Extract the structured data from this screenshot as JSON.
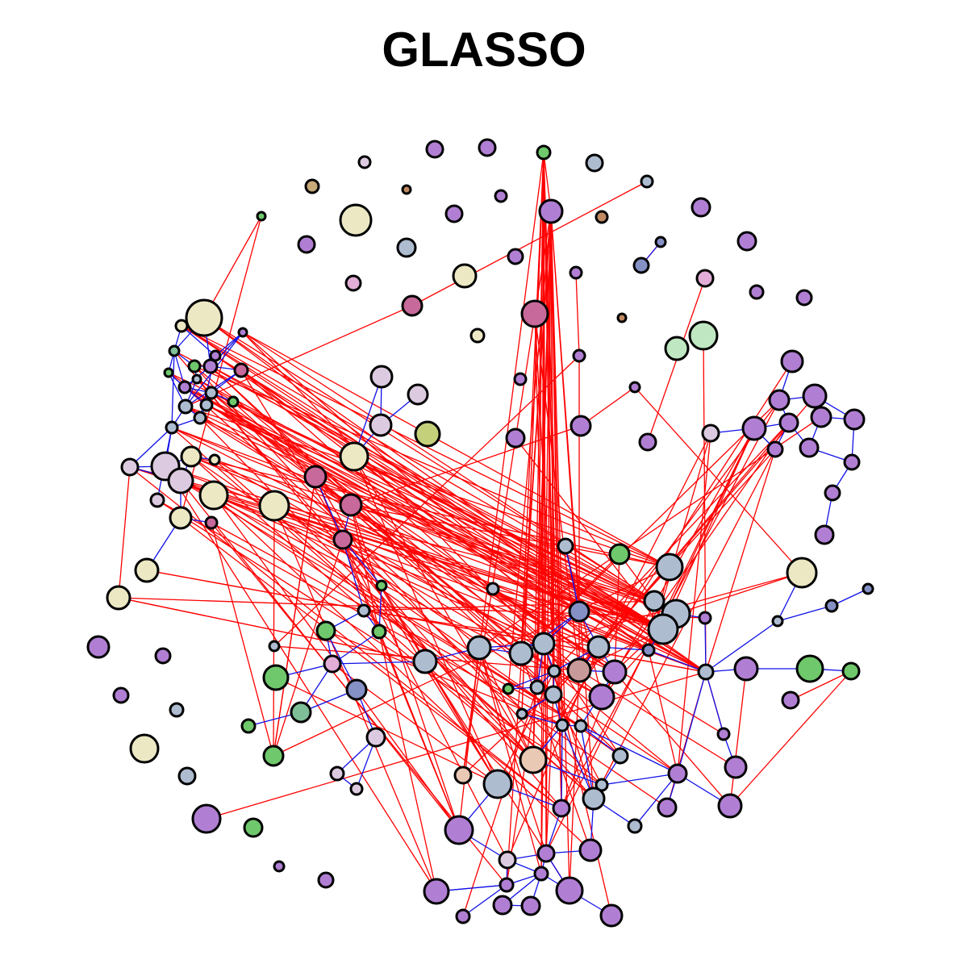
{
  "title": "GLASSO",
  "colors": {
    "positive_edge": "#1010e8",
    "negative_edge": "#ff0000",
    "node_outline": "#000000",
    "purple": "#b07fd3",
    "steel": "#aebcd0",
    "cream": "#ece8c4",
    "green": "#6fc86b",
    "mauve": "#c7699a",
    "lavender": "#dccbe0",
    "pink": "#e2aed8",
    "slate": "#8590c5",
    "tan": "#c8aa78",
    "mint": "#bfe8c2",
    "olive": "#c5d17a",
    "brown": "#c28a62",
    "teal": "#7fbf98",
    "peach": "#e9c8b4",
    "rose": "#c99a9a"
  }
}
